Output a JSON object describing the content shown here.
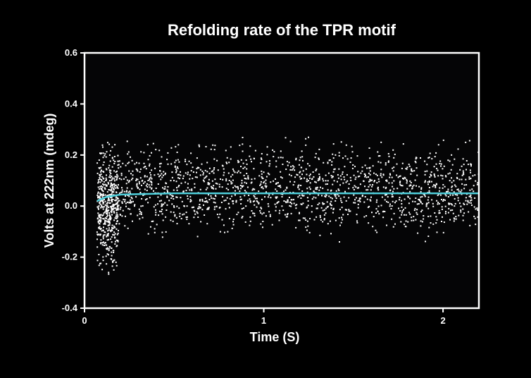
{
  "chart_data": {
    "type": "scatter",
    "title": "Refolding rate of the TPR motif",
    "xlabel": "Time (S)",
    "ylabel": "Volts at 222nm (mdeg)",
    "xlim": [
      0,
      2.2
    ],
    "ylim": [
      -0.4,
      0.6
    ],
    "x_ticks": [
      0,
      1,
      2
    ],
    "y_ticks": [
      -0.4,
      -0.2,
      0.0,
      0.2,
      0.4,
      0.6
    ],
    "x_tick_labels": [
      "0",
      "1",
      "2"
    ],
    "y_tick_labels": [
      "-0.4",
      "-0.2",
      "0.0",
      "0.2",
      "0.4",
      "0.6"
    ],
    "grid": false,
    "background": "#000000",
    "colors": {
      "points": "#ffffff",
      "fit": "#4fd0dc",
      "frame": "#ffffff"
    },
    "series": [
      {
        "kind": "points",
        "segments": [
          {
            "x_range": [
              0.07,
              0.19
            ],
            "y_center": 0.0,
            "y_spread": [
              -0.31,
              0.31
            ],
            "count": 500
          },
          {
            "x_range": [
              0.19,
              2.2
            ],
            "y_center": 0.05,
            "y_spread": [
              -0.17,
              0.3
            ],
            "count": 1600
          }
        ]
      },
      {
        "kind": "fit-curve",
        "x": [
          0.07,
          0.12,
          0.2,
          0.5,
          1.0,
          1.5,
          2.0,
          2.2
        ],
        "y": [
          0.02,
          0.035,
          0.045,
          0.05,
          0.05,
          0.05,
          0.05,
          0.05
        ]
      }
    ]
  }
}
